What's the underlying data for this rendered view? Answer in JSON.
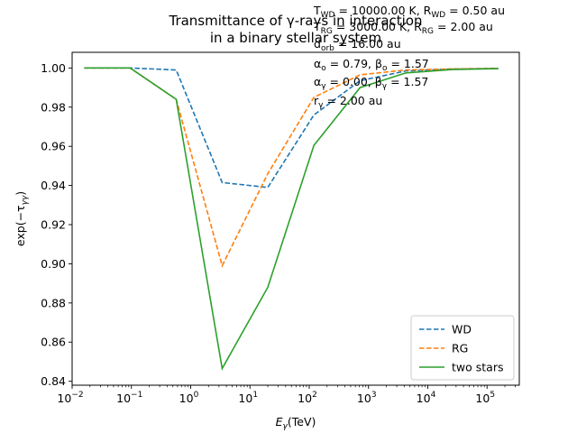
{
  "chart_data": {
    "type": "line",
    "title_lines": [
      "Transmittance of γ-rays in interaction",
      "in a binary stellar system"
    ],
    "xlabel": {
      "base": "E",
      "sub": "γ",
      "rest": "(TeV)"
    },
    "ylabel": {
      "base": "exp(−τ",
      "sub": "γγ",
      "rest": ")"
    },
    "xscale": "log",
    "xlim": [
      0.01,
      350000
    ],
    "ylim": [
      0.838,
      1.008
    ],
    "xticks": [
      {
        "value": 0.01,
        "base": "10",
        "exp": "−2"
      },
      {
        "value": 0.1,
        "base": "10",
        "exp": "−1"
      },
      {
        "value": 1,
        "base": "10",
        "exp": "0"
      },
      {
        "value": 10,
        "base": "10",
        "exp": "1"
      },
      {
        "value": 100,
        "base": "10",
        "exp": "2"
      },
      {
        "value": 1000,
        "base": "10",
        "exp": "3"
      },
      {
        "value": 10000,
        "base": "10",
        "exp": "4"
      },
      {
        "value": 100000,
        "base": "10",
        "exp": "5"
      }
    ],
    "yticks": [
      {
        "value": 0.84,
        "label": "0.84"
      },
      {
        "value": 0.86,
        "label": "0.86"
      },
      {
        "value": 0.88,
        "label": "0.88"
      },
      {
        "value": 0.9,
        "label": "0.90"
      },
      {
        "value": 0.92,
        "label": "0.92"
      },
      {
        "value": 0.94,
        "label": "0.94"
      },
      {
        "value": 0.96,
        "label": "0.96"
      },
      {
        "value": 0.98,
        "label": "0.98"
      },
      {
        "value": 1.0,
        "label": "1.00"
      }
    ],
    "x": [
      0.016,
      0.095,
      0.57,
      3.4,
      20,
      120,
      720,
      4300,
      26000,
      155000
    ],
    "series": [
      {
        "name": "WD",
        "color": "#1f77b4",
        "dash": true,
        "values": [
          1.0,
          1.0,
          0.999,
          0.9415,
          0.939,
          0.976,
          0.9935,
          0.9985,
          0.9995,
          0.9998
        ]
      },
      {
        "name": "RG",
        "color": "#ff7f0e",
        "dash": true,
        "values": [
          1.0,
          1.0,
          0.984,
          0.899,
          0.946,
          0.985,
          0.9965,
          0.999,
          0.9995,
          0.9998
        ]
      },
      {
        "name": "two stars",
        "color": "#2ca02c",
        "dash": false,
        "values": [
          1.0,
          1.0,
          0.984,
          0.8465,
          0.888,
          0.9605,
          0.99,
          0.9975,
          0.9992,
          0.9997
        ]
      }
    ],
    "legend_position": "lower-right",
    "grid": false,
    "annotations": [
      [
        {
          "t": "T"
        },
        {
          "t": "WD",
          "sub": true
        },
        {
          "t": " = 10000.00 K, R"
        },
        {
          "t": "WD",
          "sub": true
        },
        {
          "t": " = 0.50 au"
        }
      ],
      [
        {
          "t": "T"
        },
        {
          "t": "RG",
          "sub": true
        },
        {
          "t": " = 3000.00 K, R"
        },
        {
          "t": "RG",
          "sub": true
        },
        {
          "t": " =  2.00 au"
        }
      ],
      [
        {
          "t": "d"
        },
        {
          "t": "orb",
          "sub": true
        },
        {
          "t": " = 16.00 au"
        }
      ],
      [
        {
          "t": "α"
        },
        {
          "t": "o",
          "sub": true
        },
        {
          "t": " = 0.79, β"
        },
        {
          "t": "o",
          "sub": true
        },
        {
          "t": " = 1.57"
        }
      ],
      [
        {
          "t": "α"
        },
        {
          "t": "γ",
          "sub": true
        },
        {
          "t": " = 0.00, β"
        },
        {
          "t": "γ",
          "sub": true
        },
        {
          "t": " = 1.57"
        }
      ],
      [
        {
          "t": "r"
        },
        {
          "t": "γ",
          "sub": true
        },
        {
          "t": " = 2.00 au"
        }
      ]
    ]
  }
}
